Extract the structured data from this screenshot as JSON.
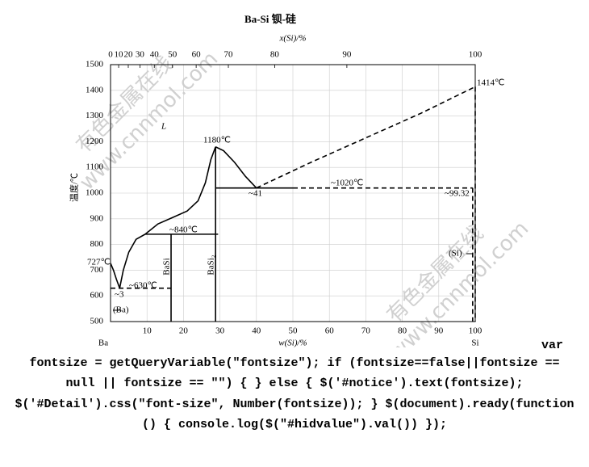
{
  "chart_data": {
    "type": "line",
    "title": "Ba-Si  钡-硅",
    "x2_label": "x(Si)/%",
    "xlabel": "w(Si)/%",
    "ylabel": "温度/℃",
    "xlim": [
      0,
      100
    ],
    "ylim": [
      500,
      1500
    ],
    "xticks": [
      10,
      20,
      30,
      40,
      50,
      60,
      70,
      80,
      90,
      100
    ],
    "x2ticks": [
      0,
      10,
      20,
      30,
      40,
      50,
      60,
      70,
      80,
      90,
      100
    ],
    "yticks": [
      500,
      600,
      700,
      800,
      900,
      1000,
      1100,
      1200,
      1300,
      1400,
      1500
    ],
    "grid": true,
    "end_labels": [
      "Ba",
      "Si"
    ],
    "series": [
      {
        "color": "#000",
        "dash": false,
        "x": [
          0,
          0.8,
          1.6,
          2.5
        ],
        "values": [
          727,
          700,
          665,
          630
        ]
      },
      {
        "color": "#000",
        "dash": false,
        "x": [
          2.5,
          3.5,
          5,
          7,
          9.5
        ],
        "values": [
          630,
          700,
          770,
          820,
          840
        ]
      },
      {
        "color": "#000",
        "dash": false,
        "x": [
          9.5,
          13,
          17,
          21,
          24,
          26,
          27.5,
          28.8
        ],
        "values": [
          840,
          880,
          905,
          930,
          970,
          1040,
          1130,
          1180
        ]
      },
      {
        "color": "#000",
        "dash": false,
        "x": [
          28.8,
          31,
          34,
          37,
          40
        ],
        "values": [
          1180,
          1165,
          1120,
          1065,
          1020
        ]
      },
      {
        "color": "#000",
        "dash": true,
        "x": [
          40,
          55,
          70,
          85,
          100
        ],
        "values": [
          1020,
          1120,
          1215,
          1310,
          1414
        ]
      },
      {
        "color": "#000",
        "dash": false,
        "x": [
          28.8,
          50
        ],
        "values": [
          1020,
          1020
        ]
      },
      {
        "color": "#000",
        "dash": true,
        "x": [
          50,
          99.3
        ],
        "values": [
          1020,
          1020
        ]
      },
      {
        "color": "#000",
        "dash": false,
        "x": [
          9.5,
          29.5
        ],
        "values": [
          840,
          840
        ]
      },
      {
        "color": "#000",
        "dash": true,
        "x": [
          0,
          16.6
        ],
        "values": [
          630,
          630
        ]
      },
      {
        "color": "#000",
        "dash": false,
        "x": [
          16.6,
          16.6
        ],
        "values": [
          500,
          840
        ]
      },
      {
        "color": "#000",
        "dash": false,
        "x": [
          28.8,
          28.8
        ],
        "values": [
          500,
          1180
        ]
      },
      {
        "color": "#000",
        "dash": true,
        "x": [
          100,
          100
        ],
        "values": [
          1414,
          500
        ]
      },
      {
        "color": "#000",
        "dash": true,
        "x": [
          99.3,
          99.3
        ],
        "values": [
          1020,
          500
        ]
      }
    ],
    "annotations": [
      "1414℃",
      "1180℃",
      "~840℃",
      "~1020℃",
      "~99.32",
      "~41",
      "~630℃",
      "~3",
      "727℃",
      "L",
      "(Ba)",
      "(Si)",
      "BaSi",
      "BaSi₂"
    ]
  },
  "watermark": [
    "有色金属在线",
    "www.cnnmol.com"
  ],
  "page_text": [
    "var",
    "fontsize = getQueryVariable(\"fontsize\"); if (fontsize==false||fontsize ==",
    "null || fontsize == \"\") { } else { $('#notice').text(fontsize);",
    "$('#Detail').css(\"font-size\", Number(fontsize)); } $(document).ready(function",
    "() { console.log($(\"#hidvalue\").val()) });"
  ]
}
